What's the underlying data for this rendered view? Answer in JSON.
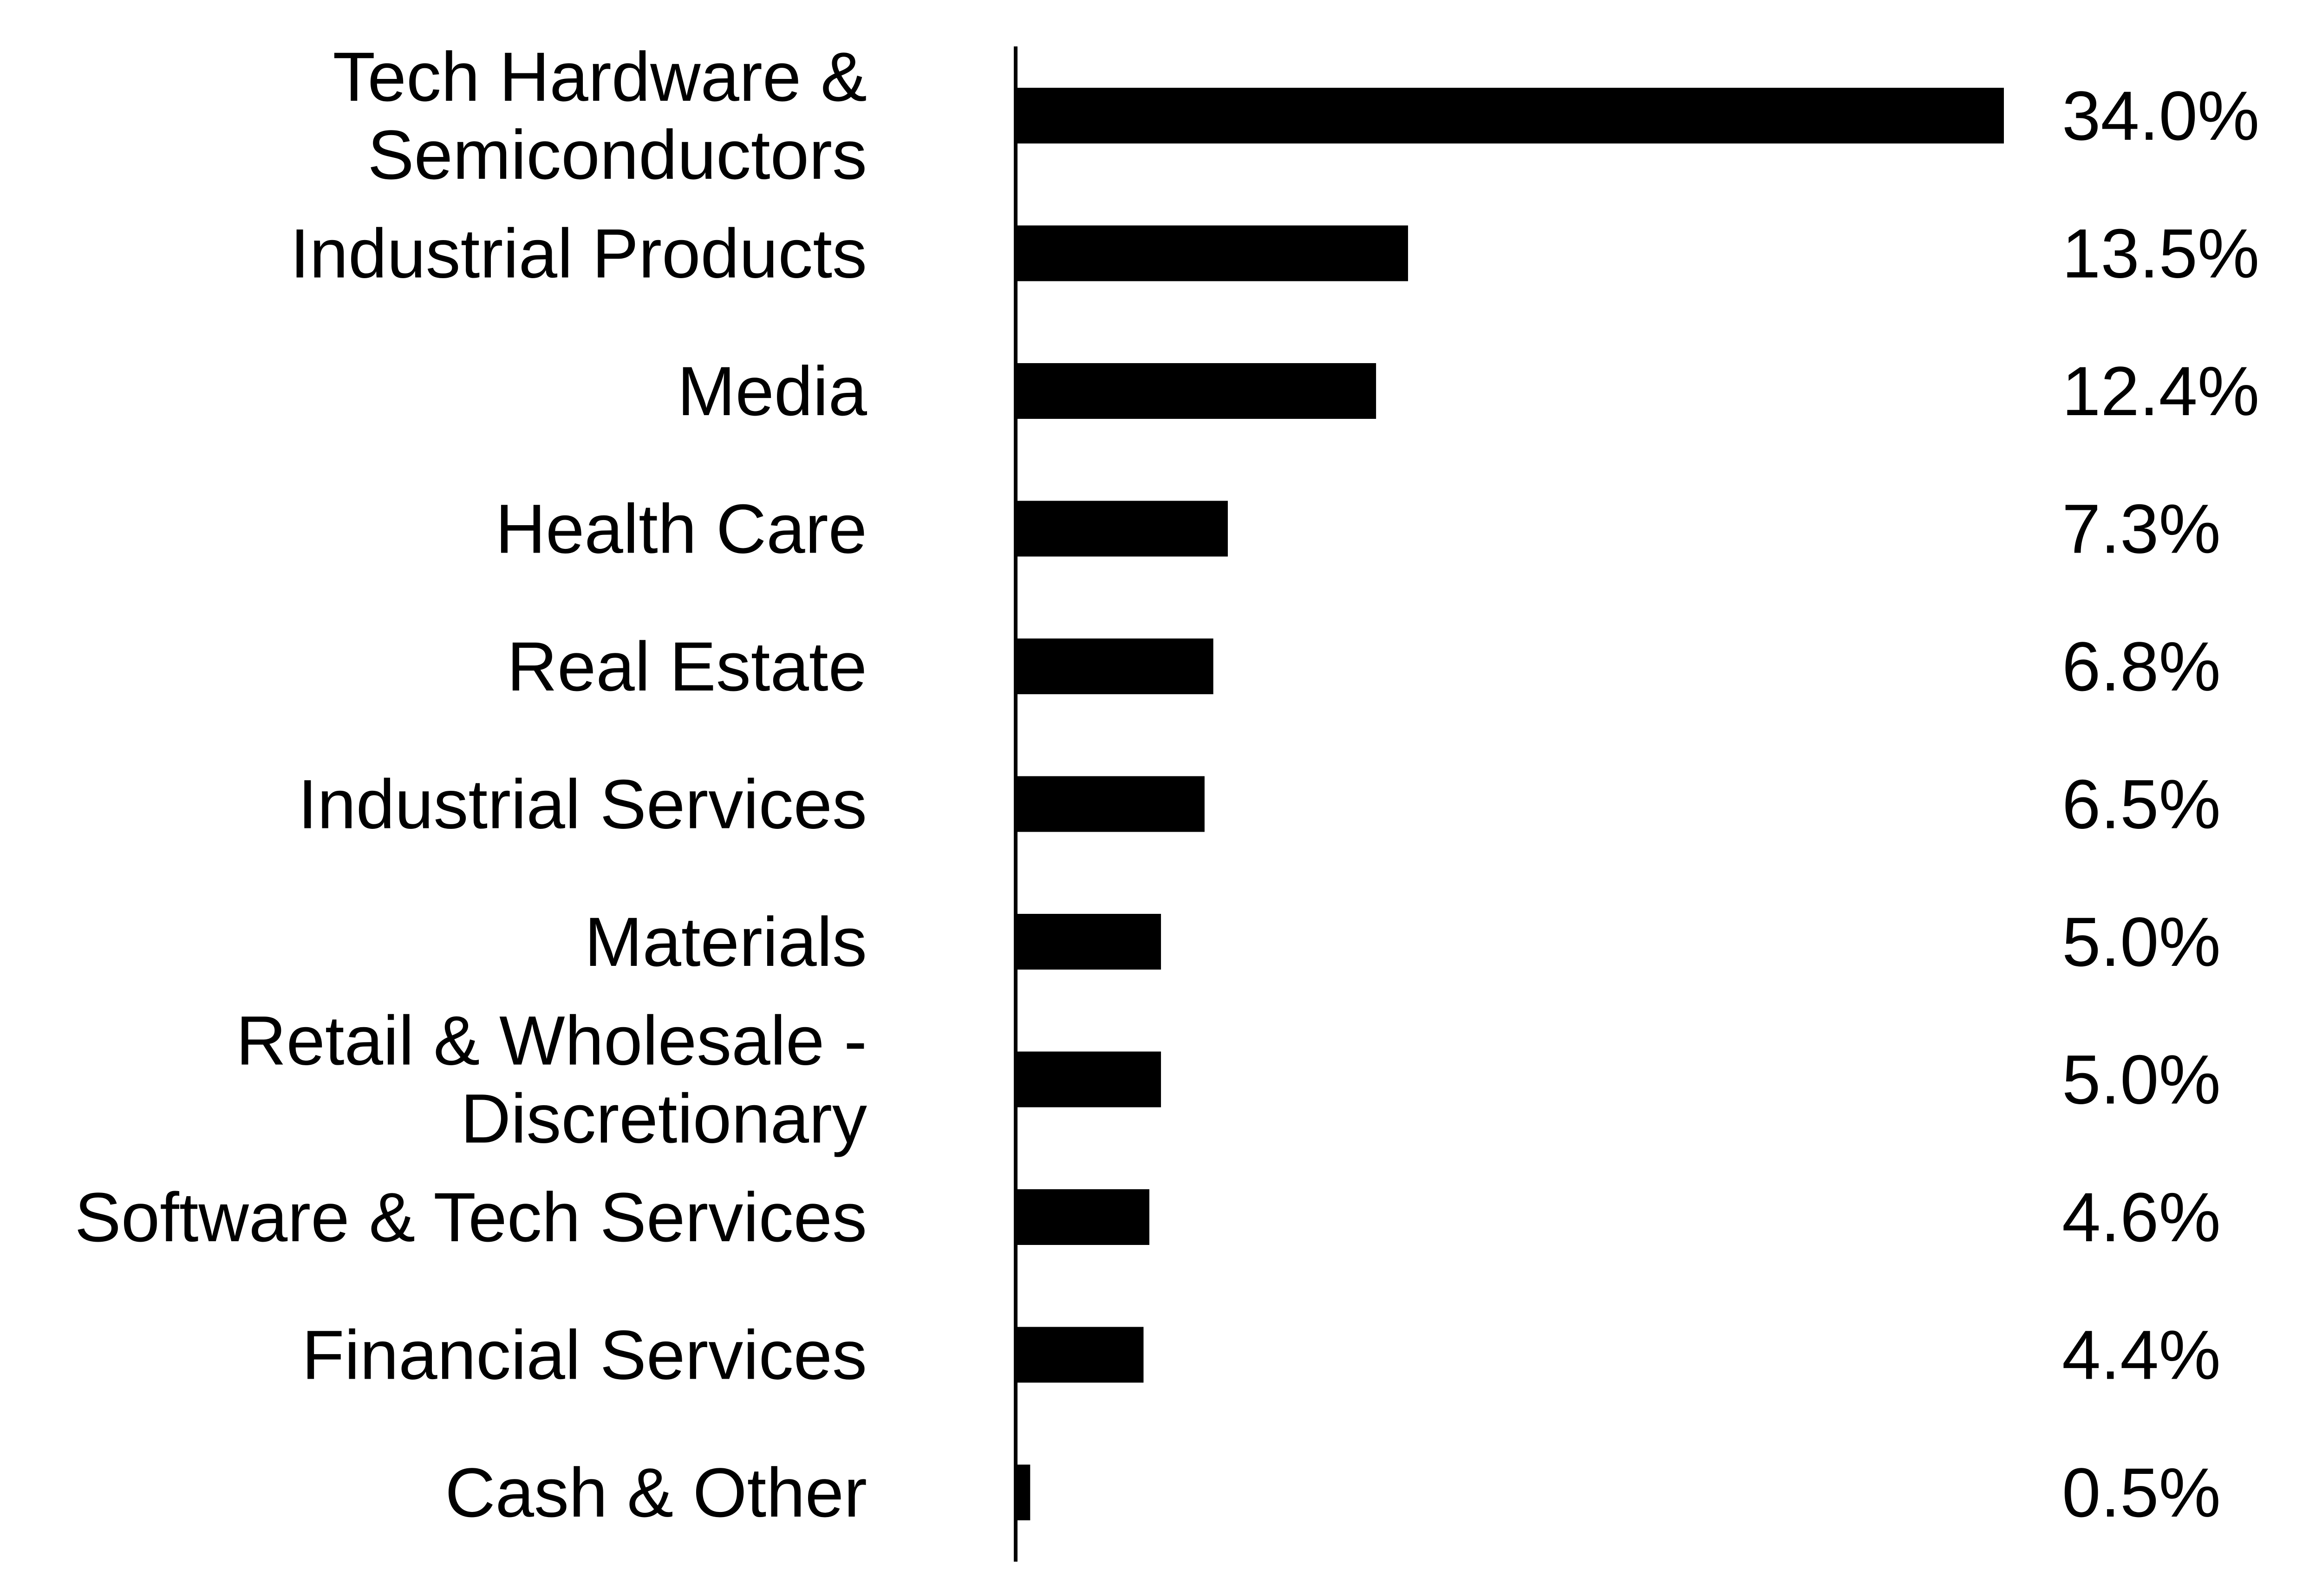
{
  "chart_data": {
    "type": "bar",
    "orientation": "horizontal",
    "categories": [
      [
        "Tech Hardware &",
        "Semiconductors"
      ],
      [
        "Industrial Products"
      ],
      [
        "Media"
      ],
      [
        "Health Care"
      ],
      [
        "Real Estate"
      ],
      [
        "Industrial Services"
      ],
      [
        "Materials"
      ],
      [
        "Retail & Wholesale -",
        "Discretionary"
      ],
      [
        "Software & Tech Services"
      ],
      [
        "Financial Services"
      ],
      [
        "Cash & Other"
      ]
    ],
    "values": [
      34.0,
      13.5,
      12.4,
      7.3,
      6.8,
      6.5,
      5.0,
      5.0,
      4.6,
      4.4,
      0.5
    ],
    "value_labels": [
      "34.0%",
      "13.5%",
      "12.4%",
      "7.3%",
      "6.8%",
      "6.5%",
      "5.0%",
      "5.0%",
      "4.6%",
      "4.4%",
      "0.5%"
    ],
    "title": "",
    "xlabel": "",
    "ylabel": "",
    "xlim": [
      0,
      34.0
    ],
    "grid": false,
    "legend": "none",
    "colors": {
      "bar": "#000000",
      "axis": "#000000",
      "text": "#000000",
      "background": "#ffffff"
    }
  }
}
